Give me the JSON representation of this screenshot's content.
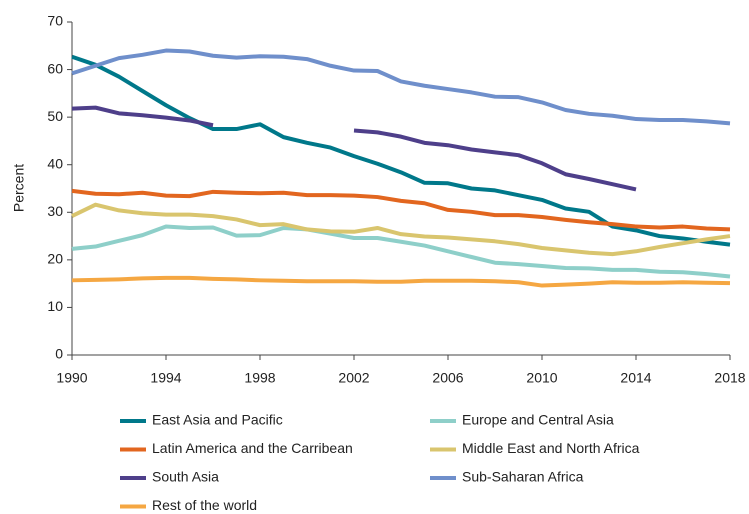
{
  "chart_data": {
    "type": "line",
    "ylabel": "Percent",
    "x": [
      1990,
      1991,
      1992,
      1993,
      1994,
      1995,
      1996,
      1997,
      1998,
      1999,
      2000,
      2001,
      2002,
      2003,
      2004,
      2005,
      2006,
      2007,
      2008,
      2009,
      2010,
      2011,
      2012,
      2013,
      2014,
      2015,
      2016,
      2017,
      2018
    ],
    "xlim": [
      1990,
      2018
    ],
    "xticks": [
      1990,
      1994,
      1998,
      2002,
      2006,
      2010,
      2014,
      2018
    ],
    "ylim": [
      0,
      70
    ],
    "yticks": [
      0,
      10,
      20,
      30,
      40,
      50,
      60,
      70
    ],
    "series": [
      {
        "name": "East Asia and Pacific",
        "color": "#00788a",
        "values": [
          62.7,
          61,
          58.5,
          55.5,
          52.5,
          49.8,
          47.5,
          47.5,
          48.5,
          45.8,
          44.6,
          43.6,
          41.8,
          40.2,
          38.4,
          36.2,
          36.1,
          35,
          34.6,
          33.6,
          32.6,
          30.8,
          30.1,
          27,
          26.2,
          25,
          24.5,
          23.8,
          23.2
        ]
      },
      {
        "name": "Europe and Central Asia",
        "color": "#8ecfc9",
        "values": [
          22.3,
          22.8,
          24,
          25.2,
          27,
          26.7,
          26.8,
          25.1,
          25.2,
          26.7,
          26.4,
          25.5,
          24.6,
          24.6,
          23.8,
          23,
          21.8,
          20.6,
          19.4,
          19.1,
          18.7,
          18.3,
          18.2,
          17.9,
          17.9,
          17.5,
          17.4,
          17,
          16.5
        ]
      },
      {
        "name": "Latin America and the Carribean",
        "color": "#e2661f",
        "values": [
          34.5,
          33.9,
          33.8,
          34.1,
          33.5,
          33.4,
          34.3,
          34.1,
          34,
          34.1,
          33.6,
          33.6,
          33.5,
          33.2,
          32.4,
          31.9,
          30.5,
          30.1,
          29.4,
          29.4,
          29,
          28.4,
          27.9,
          27.5,
          27,
          26.8,
          27,
          26.6,
          26.4
        ]
      },
      {
        "name": "Middle East and North Africa",
        "color": "#d9c56e",
        "values": [
          29.2,
          31.6,
          30.4,
          29.8,
          29.5,
          29.5,
          29.2,
          28.5,
          27.3,
          27.5,
          26.4,
          26,
          25.9,
          26.7,
          25.4,
          24.9,
          24.7,
          24.3,
          23.9,
          23.3,
          22.5,
          22,
          21.5,
          21.2,
          21.8,
          22.7,
          23.5,
          24.3,
          25
        ]
      },
      {
        "name": "South Asia",
        "color": "#4e3f8a",
        "values": [
          51.8,
          52,
          50.8,
          50.4,
          49.9,
          49.3,
          48.3,
          null,
          null,
          null,
          null,
          null,
          47.2,
          46.8,
          45.9,
          44.6,
          44.1,
          43.2,
          42.6,
          42,
          40.3,
          38,
          37,
          35.9,
          34.8,
          null,
          null,
          null,
          null
        ]
      },
      {
        "name": "Sub-Saharan Africa",
        "color": "#6f8fcb",
        "values": [
          59.2,
          60.8,
          62.4,
          63.1,
          64,
          63.8,
          62.9,
          62.5,
          62.8,
          62.7,
          62.2,
          60.8,
          59.8,
          59.7,
          57.5,
          56.6,
          55.9,
          55.2,
          54.3,
          54.2,
          53.1,
          51.5,
          50.7,
          50.3,
          49.6,
          49.4,
          49.4,
          49.1,
          48.7
        ]
      },
      {
        "name": "Rest of the world",
        "color": "#f5a742",
        "values": [
          15.7,
          15.8,
          15.9,
          16.1,
          16.2,
          16.2,
          16,
          15.9,
          15.7,
          15.6,
          15.5,
          15.5,
          15.5,
          15.4,
          15.4,
          15.6,
          15.6,
          15.6,
          15.5,
          15.3,
          14.6,
          14.8,
          15,
          15.3,
          15.2,
          15.2,
          15.3,
          15.2,
          15.1
        ]
      }
    ]
  }
}
